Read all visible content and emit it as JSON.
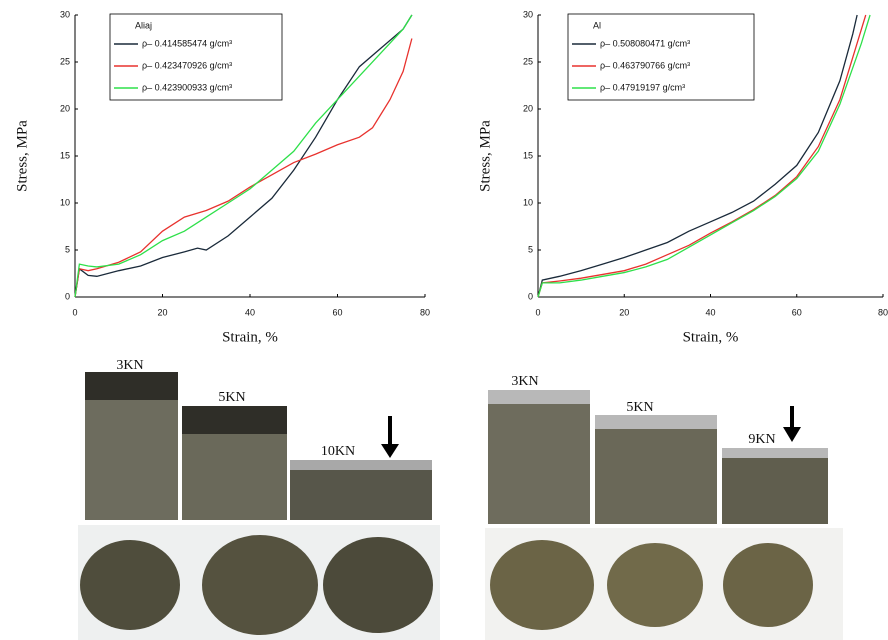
{
  "chart_data": [
    {
      "type": "line",
      "legend_title": "Aliaj",
      "xlabel": "Strain, %",
      "ylabel": "Stress, MPa",
      "xlim": [
        0,
        80
      ],
      "xticks": [
        0,
        20,
        40,
        60,
        80
      ],
      "ylim": [
        0,
        30
      ],
      "yticks": [
        0,
        5,
        10,
        15,
        20,
        25,
        30
      ],
      "series": [
        {
          "name": "ρ– 0.414585474 g/cm³",
          "color": "#1a2a3a",
          "x": [
            0,
            1,
            3,
            5,
            10,
            15,
            20,
            25,
            28,
            30,
            35,
            40,
            45,
            50,
            55,
            60,
            65,
            70,
            75,
            77
          ],
          "values": [
            0,
            3,
            2.3,
            2.2,
            2.8,
            3.3,
            4.2,
            4.8,
            5.2,
            5,
            6.5,
            8.5,
            10.5,
            13.5,
            17,
            21,
            24.5,
            26.5,
            28.5,
            30
          ]
        },
        {
          "name": "ρ– 0.423470926 g/cm³",
          "color": "#e8322e",
          "x": [
            0,
            1,
            3,
            5,
            10,
            15,
            20,
            25,
            30,
            35,
            40,
            45,
            50,
            55,
            60,
            65,
            68,
            72,
            75,
            77
          ],
          "values": [
            0,
            3,
            2.8,
            3,
            3.7,
            4.8,
            7,
            8.5,
            9.2,
            10.2,
            11.7,
            13,
            14.3,
            15.2,
            16.2,
            17,
            18,
            21,
            24,
            27.5
          ]
        },
        {
          "name": "ρ– 0.423900933 g/cm³",
          "color": "#2ee04a",
          "x": [
            0,
            1,
            3,
            5,
            10,
            15,
            20,
            25,
            30,
            35,
            40,
            45,
            50,
            55,
            60,
            65,
            70,
            75,
            77
          ],
          "values": [
            0,
            3.5,
            3.3,
            3.2,
            3.5,
            4.5,
            6,
            7,
            8.5,
            10,
            11.5,
            13.5,
            15.5,
            18.5,
            21,
            23.5,
            26,
            28.5,
            30
          ]
        }
      ]
    },
    {
      "type": "line",
      "legend_title": "Al",
      "xlabel": "Strain, %",
      "ylabel": "Stress, MPa",
      "xlim": [
        0,
        80
      ],
      "xticks": [
        0,
        20,
        40,
        60,
        80
      ],
      "ylim": [
        0,
        30
      ],
      "yticks": [
        0,
        5,
        10,
        15,
        20,
        25,
        30
      ],
      "series": [
        {
          "name": "ρ– 0.508080471 g/cm³",
          "color": "#1a2a3a",
          "x": [
            0,
            1,
            5,
            10,
            15,
            20,
            25,
            30,
            35,
            40,
            45,
            50,
            55,
            60,
            65,
            70,
            73,
            74
          ],
          "values": [
            0,
            1.8,
            2.2,
            2.8,
            3.5,
            4.2,
            5,
            5.8,
            7,
            8,
            9,
            10.2,
            12,
            14,
            17.5,
            23,
            28,
            30
          ]
        },
        {
          "name": "ρ– 0.463790766 g/cm³",
          "color": "#e8322e",
          "x": [
            0,
            1,
            5,
            10,
            15,
            20,
            25,
            30,
            35,
            40,
            45,
            50,
            55,
            60,
            65,
            70,
            74,
            76
          ],
          "values": [
            0,
            1.5,
            1.7,
            2,
            2.4,
            2.8,
            3.5,
            4.5,
            5.5,
            6.8,
            8,
            9.3,
            10.8,
            12.8,
            16,
            21,
            27,
            30
          ]
        },
        {
          "name": "ρ– 0.47919197 g/cm³",
          "color": "#2ee04a",
          "x": [
            0,
            1,
            5,
            10,
            15,
            20,
            25,
            30,
            35,
            40,
            45,
            50,
            55,
            60,
            65,
            70,
            75,
            77
          ],
          "values": [
            0,
            1.5,
            1.5,
            1.8,
            2.2,
            2.6,
            3.2,
            4,
            5.3,
            6.6,
            7.9,
            9.2,
            10.7,
            12.6,
            15.5,
            20.5,
            27,
            30
          ]
        }
      ]
    }
  ],
  "photos": {
    "left": {
      "labels": [
        "3KN",
        "5KN",
        "10KN"
      ]
    },
    "right": {
      "labels": [
        "3KN",
        "5KN",
        "9KN"
      ]
    }
  }
}
